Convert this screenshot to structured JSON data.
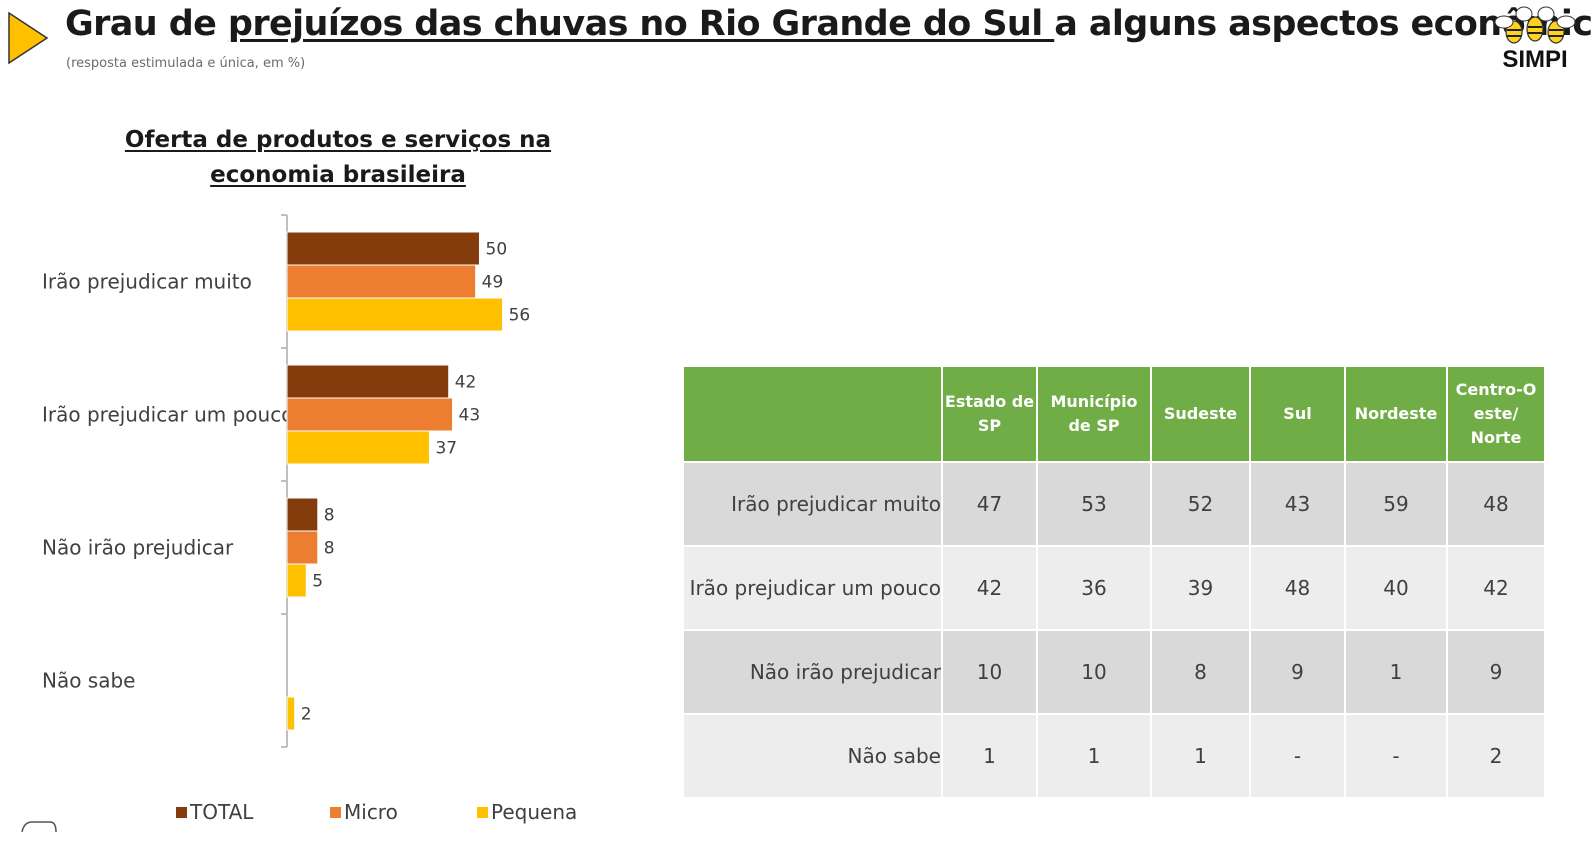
{
  "header": {
    "title_part1": "Grau de ",
    "title_part2": "prejuízos das chuvas no Rio Grande do Sul ",
    "title_part3": "a alguns aspectos econômicos",
    "subtitle": "(resposta estimulada e única, em %)",
    "logo_text": "SIMPI"
  },
  "chart_data": {
    "type": "bar",
    "orientation": "horizontal",
    "title": "Oferta de produtos e serviços na economia brasileira",
    "categories": [
      "Irão prejudicar muito",
      "Irão prejudicar um pouco",
      "Não irão prejudicar",
      "Não sabe"
    ],
    "series": [
      {
        "name": "TOTAL",
        "color": "#843c0c",
        "values": [
          50,
          42,
          8,
          null
        ],
        "labels": [
          "50",
          "42",
          "8",
          ""
        ]
      },
      {
        "name": "Micro",
        "color": "#ed7d31",
        "values": [
          49,
          43,
          8,
          null
        ],
        "labels": [
          "49",
          "43",
          "8",
          ""
        ]
      },
      {
        "name": "Pequena",
        "color": "#ffc000",
        "values": [
          56,
          37,
          5,
          2
        ],
        "labels": [
          "56",
          "37",
          "5",
          "2"
        ]
      }
    ],
    "legend_position": "bottom",
    "grid": false
  },
  "table": {
    "header_color": "#70ad47",
    "columns": [
      "",
      "Estado de SP",
      "Município de SP",
      "Sudeste",
      "Sul",
      "Nordeste",
      "Centro-O este/ Norte"
    ],
    "rows": [
      {
        "label": "Irão prejudicar muito",
        "values": [
          "47",
          "53",
          "52",
          "43",
          "59",
          "48"
        ]
      },
      {
        "label": "Irão prejudicar um pouco",
        "values": [
          "42",
          "36",
          "39",
          "48",
          "40",
          "42"
        ]
      },
      {
        "label": "Não irão prejudicar",
        "values": [
          "10",
          "10",
          "8",
          "9",
          "1",
          "9"
        ]
      },
      {
        "label": "Não sabe",
        "values": [
          "1",
          "1",
          "1",
          "-",
          "-",
          "2"
        ]
      }
    ]
  }
}
